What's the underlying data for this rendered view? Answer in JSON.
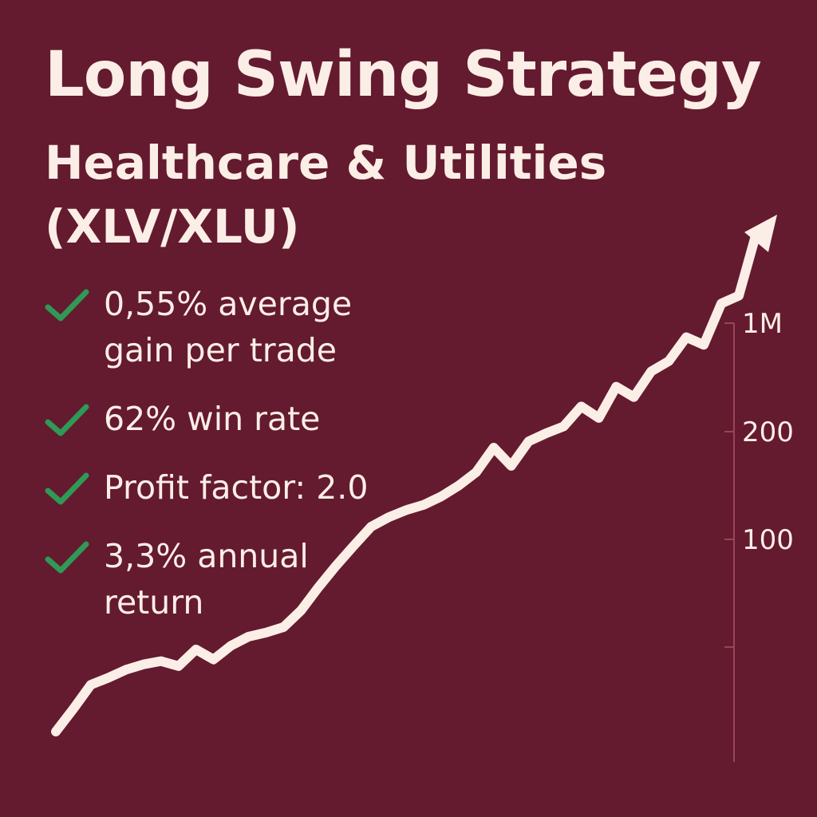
{
  "header": {
    "title": "Long Swing Strategy",
    "subtitle_line1": "Healthcare & Utilities",
    "subtitle_line2": "(XLV/XLU)"
  },
  "bullets": [
    {
      "line1": "0,55% average",
      "line2": "gain per trade",
      "icon": "check-icon"
    },
    {
      "line1": "62% win rate",
      "line2": "",
      "icon": "check-icon"
    },
    {
      "line1": "Profit factor: 2.0",
      "line2": "",
      "icon": "check-icon"
    },
    {
      "line1": "3,3% annual",
      "line2": "return",
      "icon": "check-icon"
    }
  ],
  "colors": {
    "background": "#641a2f",
    "text": "#fbeee6",
    "check": "#2e9a55",
    "axis": "#9a4456"
  },
  "chart_data": {
    "type": "line",
    "title": "",
    "xlabel": "",
    "ylabel": "",
    "y_scale": "log",
    "y_ticks": [
      "1M",
      "200",
      "100",
      ""
    ],
    "grid": false,
    "legend": "none",
    "series": [
      {
        "values": [
          1,
          1.5,
          2.3,
          2.6,
          3.0,
          3.3,
          3.5,
          3.2,
          4.3,
          3.6,
          4.6,
          5.4,
          5.8,
          6.4,
          8.6,
          13,
          19,
          27,
          38,
          45,
          51,
          56,
          65,
          79,
          100,
          155,
          112,
          173,
          200,
          226,
          322,
          262,
          457,
          380,
          600,
          720,
          1100,
          960,
          2000,
          2300,
          7000
        ]
      }
    ]
  }
}
